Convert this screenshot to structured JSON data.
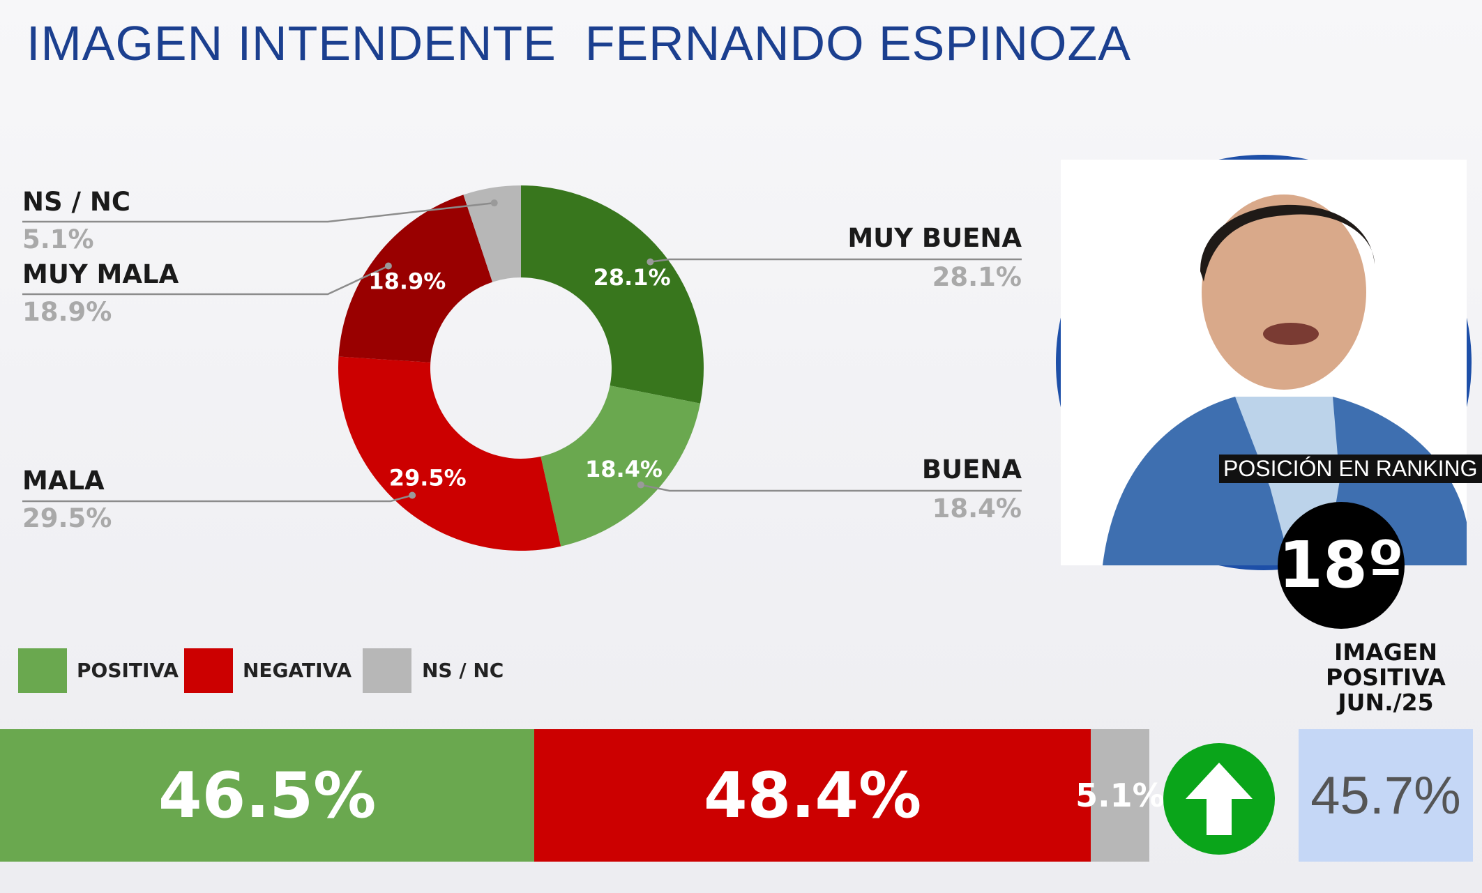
{
  "title": "IMAGEN INTENDENTE  FERNANDO ESPINOZA",
  "chart_data": [
    {
      "type": "pie",
      "variant": "donut",
      "slices": [
        {
          "label": "MUY BUENA",
          "value": 28.1,
          "display": "28.1%",
          "color": "#38761d"
        },
        {
          "label": "BUENA",
          "value": 18.4,
          "display": "18.4%",
          "color": "#6aa84f"
        },
        {
          "label": "MALA",
          "value": 29.5,
          "display": "29.5%",
          "color": "#cc0000"
        },
        {
          "label": "MUY MALA",
          "value": 18.9,
          "display": "18.9%",
          "color": "#990000"
        },
        {
          "label": "NS / NC",
          "value": 5.1,
          "display": "5.1%",
          "color": "#b7b7b7"
        }
      ]
    },
    {
      "type": "bar",
      "orientation": "horizontal-stacked",
      "legend": [
        {
          "label": "POSITIVA",
          "color": "#6aa84f"
        },
        {
          "label": "NEGATIVA",
          "color": "#cc0000"
        },
        {
          "label": "NS / NC",
          "color": "#b7b7b7"
        }
      ],
      "values": [
        46.5,
        48.4,
        5.1
      ],
      "display": [
        "46.5%",
        "48.4%",
        "5.1%"
      ]
    }
  ],
  "ranking": {
    "label": "POSICIÓN EN RANKING",
    "value": "18º"
  },
  "trend": {
    "icon": "arrow-up-icon",
    "color": "#0aa51a"
  },
  "positive_image": {
    "line1": "IMAGEN",
    "line2": "POSITIVA",
    "line3": "JUN./25",
    "value": "45.7%"
  }
}
